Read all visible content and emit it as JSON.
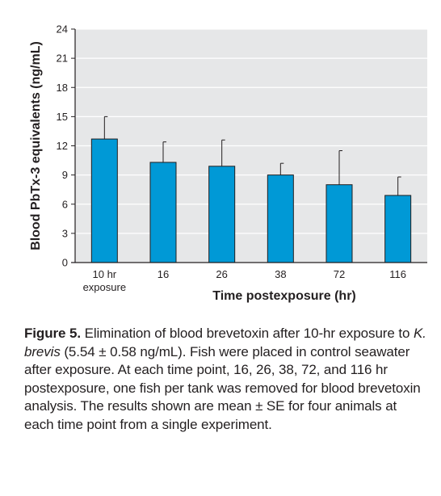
{
  "chart_data": {
    "type": "bar",
    "categories": [
      "10 hr",
      "16",
      "26",
      "38",
      "72",
      "116"
    ],
    "category_sublabels": [
      "exposure",
      "",
      "",
      "",
      "",
      ""
    ],
    "values": [
      12.7,
      10.3,
      9.9,
      9.0,
      8.0,
      6.9
    ],
    "error_upper": [
      15.0,
      12.4,
      12.6,
      10.2,
      11.5,
      8.8
    ],
    "xlabel": "Time postexposure (hr)",
    "ylabel": "Blood PbTx-3 equivalents (ng/mL)",
    "ylim": [
      0,
      24
    ],
    "yticks": [
      "0",
      "3",
      "6",
      "9",
      "12",
      "15",
      "18",
      "21",
      "24"
    ],
    "grid": true,
    "bar_color": "#0099d6",
    "plot_background": "#e6e7e8",
    "grid_color": "#ffffff"
  },
  "caption": {
    "label": "Figure 5.",
    "part1": " Elimination of blood brevetoxin after 10-hr exposure to ",
    "species": "K. brevis",
    "part2": " (5.54 ± 0.58 ng/mL). Fish were placed in control seawater after exposure. At each time point, 16, 26, 38, 72, and 116 hr postexposure, one fish per tank was removed for blood brevetoxin analysis. The results shown are mean ± SE for four animals at each time point from a single experiment."
  }
}
